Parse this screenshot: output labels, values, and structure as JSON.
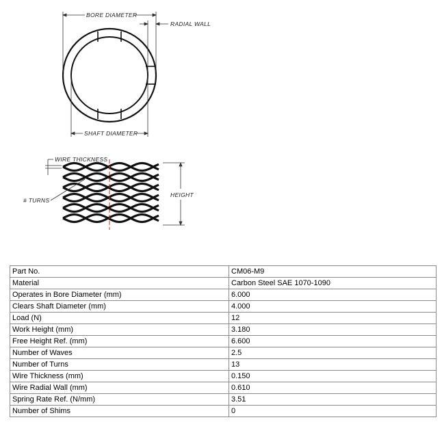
{
  "drawing": {
    "labels": {
      "bore_diameter": "BORE DIAMETER",
      "radial_wall": "RADIAL WALL",
      "shaft_diameter": "SHAFT DIAMETER",
      "wire_thickness": "WIRE THICKNESS",
      "turns": "# TURNS",
      "height": "HEIGHT"
    }
  },
  "specs": {
    "rows": [
      {
        "label": "Part No.",
        "value": "CM06-M9"
      },
      {
        "label": "Material",
        "value": "Carbon Steel SAE 1070-1090"
      },
      {
        "label": "Operates in Bore Diameter (mm)",
        "value": "6.000"
      },
      {
        "label": "Clears Shaft Diameter (mm)",
        "value": "4.000"
      },
      {
        "label": "Load (N)",
        "value": "12"
      },
      {
        "label": "Work Height (mm)",
        "value": "3.180"
      },
      {
        "label": "Free Height Ref. (mm)",
        "value": "6.600"
      },
      {
        "label": "Number of Waves",
        "value": "2.5"
      },
      {
        "label": "Number of Turns",
        "value": "13"
      },
      {
        "label": "Wire Thickness (mm)",
        "value": "0.150"
      },
      {
        "label": "Wire Radial Wall (mm)",
        "value": "0.610"
      },
      {
        "label": "Spring Rate Ref. (N/mm)",
        "value": "3.51"
      },
      {
        "label": "Number of Shims",
        "value": "0"
      }
    ]
  }
}
